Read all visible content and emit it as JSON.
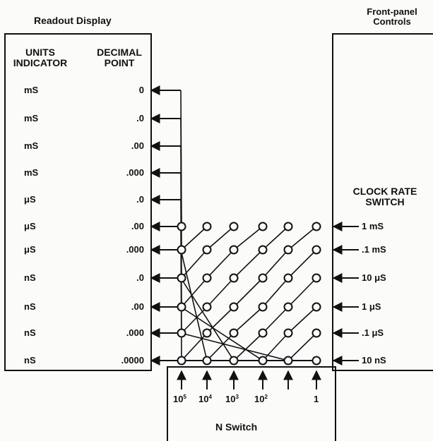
{
  "readout_title": "Readout Display",
  "front_panel_title": [
    "Front-panel",
    "Controls"
  ],
  "units_header": [
    "UNITS",
    "INDICATOR"
  ],
  "decimal_header": [
    "DECIMAL",
    "POINT"
  ],
  "rows": [
    {
      "units": "mS",
      "decimal": "0"
    },
    {
      "units": "mS",
      "decimal": ".0"
    },
    {
      "units": "mS",
      "decimal": ".00"
    },
    {
      "units": "mS",
      "decimal": ".000"
    },
    {
      "units": "μS",
      "decimal": ".0"
    },
    {
      "units": "μS",
      "decimal": ".00"
    },
    {
      "units": "μS",
      "decimal": ".000"
    },
    {
      "units": "nS",
      "decimal": ".0"
    },
    {
      "units": "nS",
      "decimal": ".00"
    },
    {
      "units": "nS",
      "decimal": ".000"
    },
    {
      "units": "nS",
      "decimal": ".0000"
    }
  ],
  "clock_rate_header": [
    "CLOCK RATE",
    "SWITCH"
  ],
  "clock_rates": [
    "1 mS",
    ".1 mS",
    "10 μS",
    "1 μS",
    ".1 μS",
    "10 nS"
  ],
  "n_switch_title": "N Switch",
  "n_switch_labels": [
    {
      "base": "10",
      "exp": "5"
    },
    {
      "base": "10",
      "exp": "4"
    },
    {
      "base": "10",
      "exp": "3"
    },
    {
      "base": "10",
      "exp": "2"
    },
    {
      "base": "",
      "exp": ""
    },
    {
      "base": "1",
      "exp": ""
    }
  ]
}
